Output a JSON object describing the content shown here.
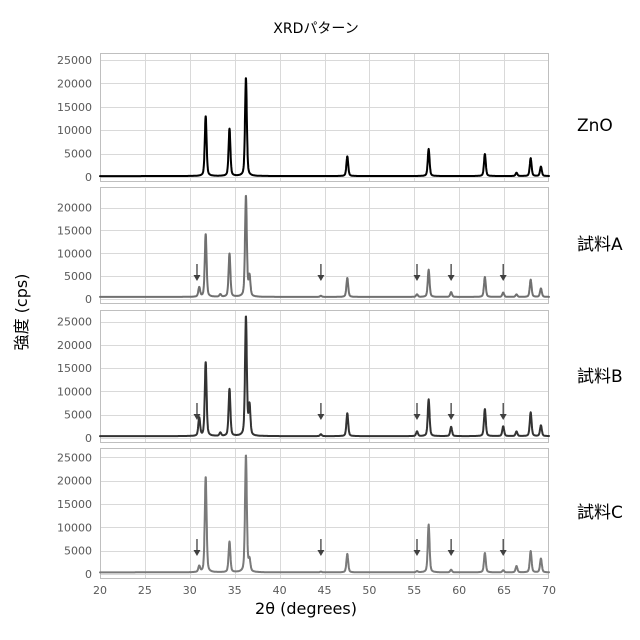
{
  "chart_data": {
    "type": "line",
    "title": "XRDパターン",
    "xlabel": "2θ (degrees)",
    "ylabel": "強度 (cps)",
    "xlim": [
      20,
      70
    ],
    "xticks": [
      20,
      25,
      30,
      35,
      40,
      45,
      50,
      55,
      60,
      65,
      70
    ],
    "grid": true,
    "series": [
      {
        "name": "ZnO",
        "color": "#000000",
        "ylim": [
          0,
          26500
        ],
        "yticks": [
          0,
          5000,
          10000,
          15000,
          20000,
          25000
        ],
        "background": 200,
        "peaks": [
          {
            "x": 31.77,
            "y": 13000
          },
          {
            "x": 34.42,
            "y": 10300
          },
          {
            "x": 36.25,
            "y": 21200
          },
          {
            "x": 47.54,
            "y": 4400
          },
          {
            "x": 56.6,
            "y": 6000
          },
          {
            "x": 62.86,
            "y": 4900
          },
          {
            "x": 66.38,
            "y": 900
          },
          {
            "x": 67.96,
            "y": 4000
          },
          {
            "x": 69.1,
            "y": 2200
          }
        ],
        "arrows": []
      },
      {
        "name": "試料A",
        "color": "#707070",
        "ylim": [
          0,
          24500
        ],
        "yticks": [
          0,
          5000,
          10000,
          15000,
          20000
        ],
        "background": 450,
        "peaks": [
          {
            "x": 31.05,
            "y": 2500
          },
          {
            "x": 31.77,
            "y": 14200
          },
          {
            "x": 33.4,
            "y": 1000
          },
          {
            "x": 34.42,
            "y": 9900
          },
          {
            "x": 36.25,
            "y": 22500
          },
          {
            "x": 36.65,
            "y": 4800
          },
          {
            "x": 44.6,
            "y": 700
          },
          {
            "x": 47.54,
            "y": 4600
          },
          {
            "x": 55.3,
            "y": 1000
          },
          {
            "x": 56.6,
            "y": 6400
          },
          {
            "x": 59.1,
            "y": 1500
          },
          {
            "x": 62.86,
            "y": 4800
          },
          {
            "x": 64.9,
            "y": 1400
          },
          {
            "x": 66.38,
            "y": 1000
          },
          {
            "x": 67.96,
            "y": 4200
          },
          {
            "x": 69.1,
            "y": 2300
          }
        ],
        "arrows": [
          30.8,
          44.6,
          55.3,
          59.1,
          64.9
        ]
      },
      {
        "name": "試料B",
        "color": "#333333",
        "ylim": [
          0,
          27500
        ],
        "yticks": [
          0,
          5000,
          10000,
          15000,
          20000,
          25000
        ],
        "background": 400,
        "peaks": [
          {
            "x": 31.05,
            "y": 4300
          },
          {
            "x": 31.77,
            "y": 16300
          },
          {
            "x": 33.4,
            "y": 1100
          },
          {
            "x": 34.42,
            "y": 10500
          },
          {
            "x": 36.25,
            "y": 26000
          },
          {
            "x": 36.65,
            "y": 6800
          },
          {
            "x": 44.6,
            "y": 800
          },
          {
            "x": 47.54,
            "y": 5300
          },
          {
            "x": 55.3,
            "y": 1400
          },
          {
            "x": 56.6,
            "y": 8300
          },
          {
            "x": 59.1,
            "y": 2400
          },
          {
            "x": 62.86,
            "y": 6200
          },
          {
            "x": 64.9,
            "y": 2500
          },
          {
            "x": 66.38,
            "y": 1400
          },
          {
            "x": 67.96,
            "y": 5500
          },
          {
            "x": 69.1,
            "y": 2700
          }
        ],
        "arrows": [
          30.8,
          44.6,
          55.3,
          59.1,
          64.9
        ]
      },
      {
        "name": "試料C",
        "color": "#7a7a7a",
        "ylim": [
          0,
          27000
        ],
        "yticks": [
          0,
          5000,
          10000,
          15000,
          20000,
          25000
        ],
        "background": 350,
        "peaks": [
          {
            "x": 31.05,
            "y": 1600
          },
          {
            "x": 31.77,
            "y": 20800
          },
          {
            "x": 34.42,
            "y": 6900
          },
          {
            "x": 36.25,
            "y": 25400
          },
          {
            "x": 36.65,
            "y": 2800
          },
          {
            "x": 44.6,
            "y": 500
          },
          {
            "x": 47.54,
            "y": 4300
          },
          {
            "x": 55.3,
            "y": 600
          },
          {
            "x": 56.6,
            "y": 10600
          },
          {
            "x": 59.1,
            "y": 900
          },
          {
            "x": 62.86,
            "y": 4500
          },
          {
            "x": 64.9,
            "y": 800
          },
          {
            "x": 66.38,
            "y": 1700
          },
          {
            "x": 67.96,
            "y": 4900
          },
          {
            "x": 69.1,
            "y": 3300
          }
        ],
        "arrows": [
          30.8,
          44.6,
          55.3,
          59.1,
          64.9
        ]
      }
    ]
  },
  "colors": {
    "arrow": "#404040"
  }
}
